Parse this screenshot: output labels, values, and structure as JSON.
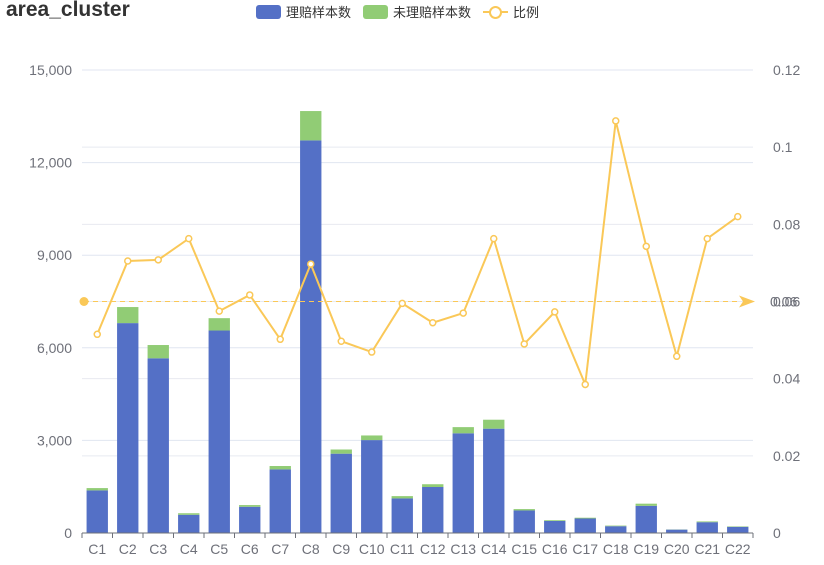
{
  "chart_data": {
    "type": "bar",
    "title": "area_cluster",
    "categories": [
      "C1",
      "C2",
      "C3",
      "C4",
      "C5",
      "C6",
      "C7",
      "C8",
      "C9",
      "C10",
      "C11",
      "C12",
      "C13",
      "C14",
      "C15",
      "C16",
      "C17",
      "C18",
      "C19",
      "C20",
      "C21",
      "C22"
    ],
    "series": [
      {
        "name": "理赔样本数",
        "type": "bar",
        "stack": "total",
        "color": "#5470c6",
        "values": [
          1380,
          6800,
          5660,
          590,
          6560,
          850,
          2060,
          12720,
          2570,
          3010,
          1120,
          1490,
          3230,
          3380,
          730,
          390,
          470,
          220,
          880,
          110,
          350,
          200
        ]
      },
      {
        "name": "未理赔样本数",
        "type": "bar",
        "stack": "total",
        "color": "#91cc75",
        "values": [
          75,
          520,
          430,
          50,
          400,
          55,
          110,
          950,
          135,
          150,
          75,
          90,
          200,
          290,
          45,
          25,
          25,
          20,
          70,
          5,
          25,
          15
        ]
      },
      {
        "name": "比例",
        "type": "line",
        "axis": "right",
        "color": "#fac858",
        "values": [
          0.0515,
          0.0705,
          0.0708,
          0.0763,
          0.0575,
          0.0617,
          0.0502,
          0.0697,
          0.0497,
          0.0469,
          0.0595,
          0.0545,
          0.057,
          0.0763,
          0.049,
          0.0573,
          0.0385,
          0.1068,
          0.0743,
          0.0458,
          0.0763,
          0.082
        ]
      }
    ],
    "y_left": {
      "min": 0,
      "max": 15000,
      "ticks": [
        "0",
        "3,000",
        "6,000",
        "9,000",
        "12,000",
        "15,000"
      ]
    },
    "y_right": {
      "min": 0,
      "max": 0.12,
      "ticks": [
        "0",
        "0.02",
        "0.04",
        "0.06",
        "0.08",
        "0.1",
        "0.12"
      ]
    },
    "mark_line": {
      "value": 0.06,
      "label": "0.06"
    },
    "grid": true,
    "legend_position": "top"
  }
}
